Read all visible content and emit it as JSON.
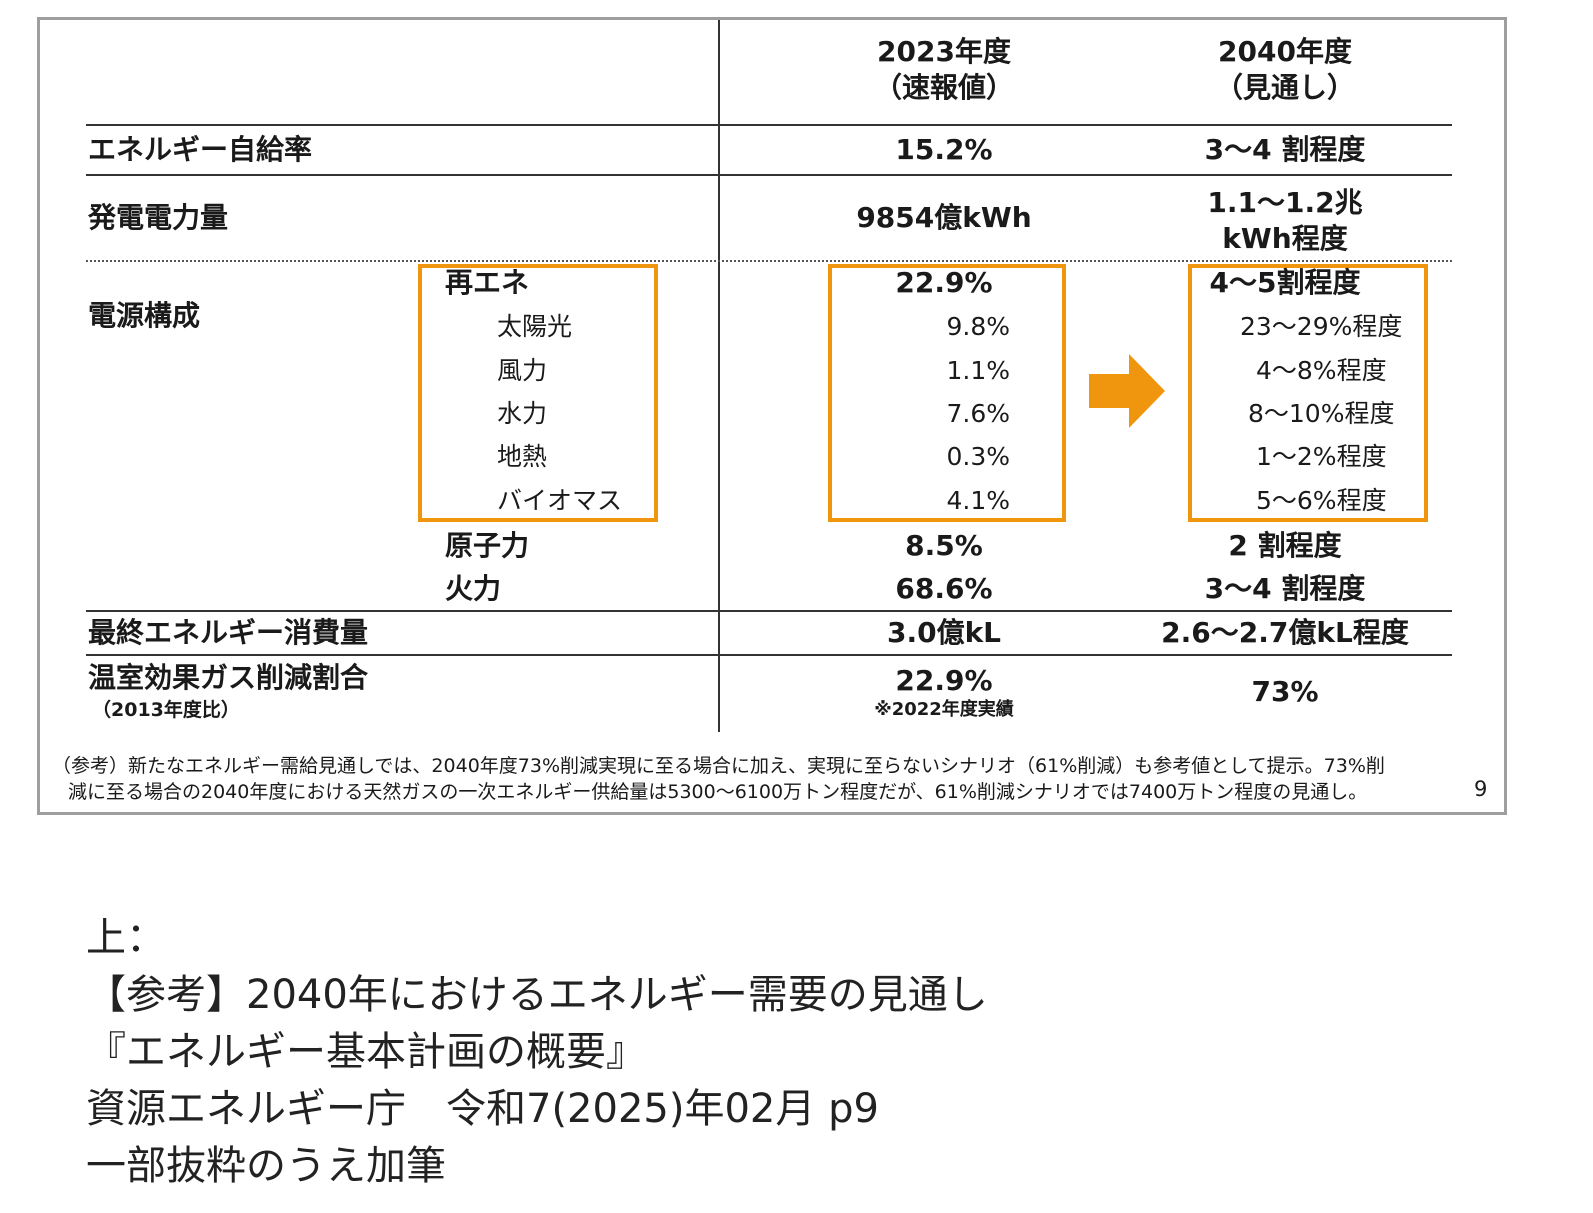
{
  "header": {
    "col2023_line1": "2023年度",
    "col2023_line2": "（速報値）",
    "col2040_line1": "2040年度",
    "col2040_line2": "（見通し）"
  },
  "rows": {
    "self_sufficiency": {
      "label": "エネルギー自給率",
      "v2023": "15.2%",
      "v2040": "3～4 割程度"
    },
    "generation": {
      "label": "発電電力量",
      "v2023": "9854億kWh",
      "v2040_line1": "1.1～1.2兆",
      "v2040_line2": "kWh程度"
    },
    "power_mix": {
      "label": "電源構成",
      "renewables": {
        "label": "再エネ",
        "v2023": "22.9%",
        "v2040": "4～5割程度"
      },
      "sub_items": [
        {
          "label": "太陽光",
          "v2023": "9.8%",
          "v2040": "23～29%程度"
        },
        {
          "label": "風力",
          "v2023": "1.1%",
          "v2040": "4～8%程度"
        },
        {
          "label": "水力",
          "v2023": "7.6%",
          "v2040": "8～10%程度"
        },
        {
          "label": "地熱",
          "v2023": "0.3%",
          "v2040": "1～2%程度"
        },
        {
          "label": "バイオマス",
          "v2023": "4.1%",
          "v2040": "5～6%程度"
        }
      ],
      "nuclear": {
        "label": "原子力",
        "v2023": "8.5%",
        "v2040": "2 割程度"
      },
      "thermal": {
        "label": "火力",
        "v2023": "68.6%",
        "v2040": "3～4 割程度"
      }
    },
    "final_consumption": {
      "label": "最終エネルギー消費量",
      "v2023": "3.0億kL",
      "v2040": "2.6～2.7億kL程度"
    },
    "ghg": {
      "label": "温室効果ガス削減割合",
      "sublabel": "（2013年度比）",
      "v2023": "22.9%",
      "v2023_note": "※2022年度実績",
      "v2040": "73%"
    }
  },
  "footnote": {
    "line1": "（参考）新たなエネルギー需給見通しでは、2040年度73%削減実現に至る場合に加え、実現に至らないシナリオ（61%削減）も参考値として提示。73%削",
    "line2": "減に至る場合の2040年度における天然ガスの一次エネルギー供給量は5300～6100万トン程度だが、61%削減シナリオでは7400万トン程度の見通し。",
    "page_number": "9"
  },
  "caption": {
    "lines": [
      "上：",
      "【参考】2040年におけるエネルギー需要の見通し",
      "『エネルギー基本計画の概要』",
      "資源エネルギー庁　令和7(2025)年02月 p9",
      "一部抜粋のうえ加筆"
    ]
  },
  "colors": {
    "highlight_orange": "#f0960e",
    "slide_border": "#9e9e9e"
  },
  "icons": {
    "arrow": "arrow-right-icon"
  }
}
